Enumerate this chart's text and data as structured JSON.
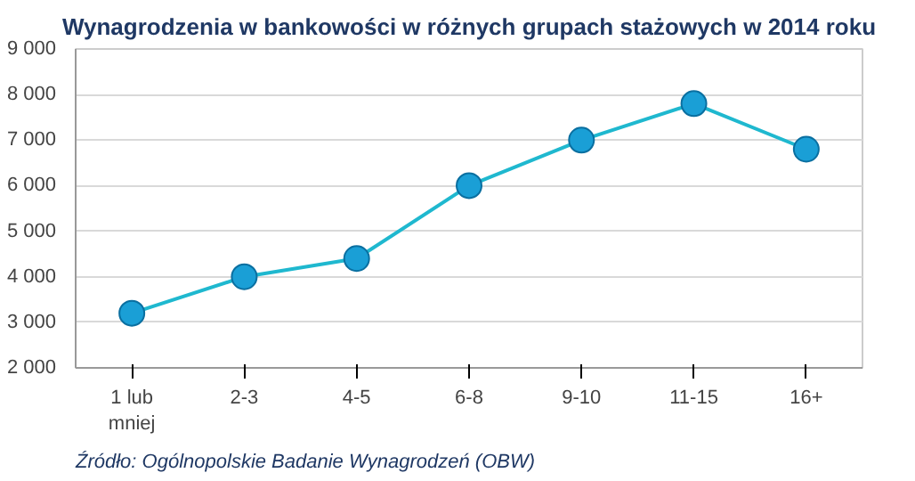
{
  "chart_data": {
    "type": "line",
    "title": "Wynagrodzenia w bankowości w różnych grupach stażowych w 2014 roku",
    "categories": [
      "1 lub\nmniej",
      "2-3",
      "4-5",
      "6-8",
      "9-10",
      "11-15",
      "16+"
    ],
    "series": [
      {
        "color": "#1fb8cf",
        "values": [
          3200,
          4000,
          4400,
          6000,
          7000,
          7800,
          6800
        ]
      }
    ],
    "ylim": [
      2000,
      9000
    ],
    "yticks": [
      {
        "value": 2000,
        "label": "2 000"
      },
      {
        "value": 3000,
        "label": "3 000"
      },
      {
        "value": 4000,
        "label": "4 000"
      },
      {
        "value": 5000,
        "label": "5 000"
      },
      {
        "value": 6000,
        "label": "6 000"
      },
      {
        "value": 7000,
        "label": "7 000"
      },
      {
        "value": 8000,
        "label": "8 000"
      },
      {
        "value": 9000,
        "label": "9 000"
      }
    ],
    "grid": "y",
    "marker": "circle",
    "line_style": "solid",
    "annotations": [
      "Źródło: Ogólnopolskie Badanie Wynagrodzeń (OBW)"
    ]
  }
}
